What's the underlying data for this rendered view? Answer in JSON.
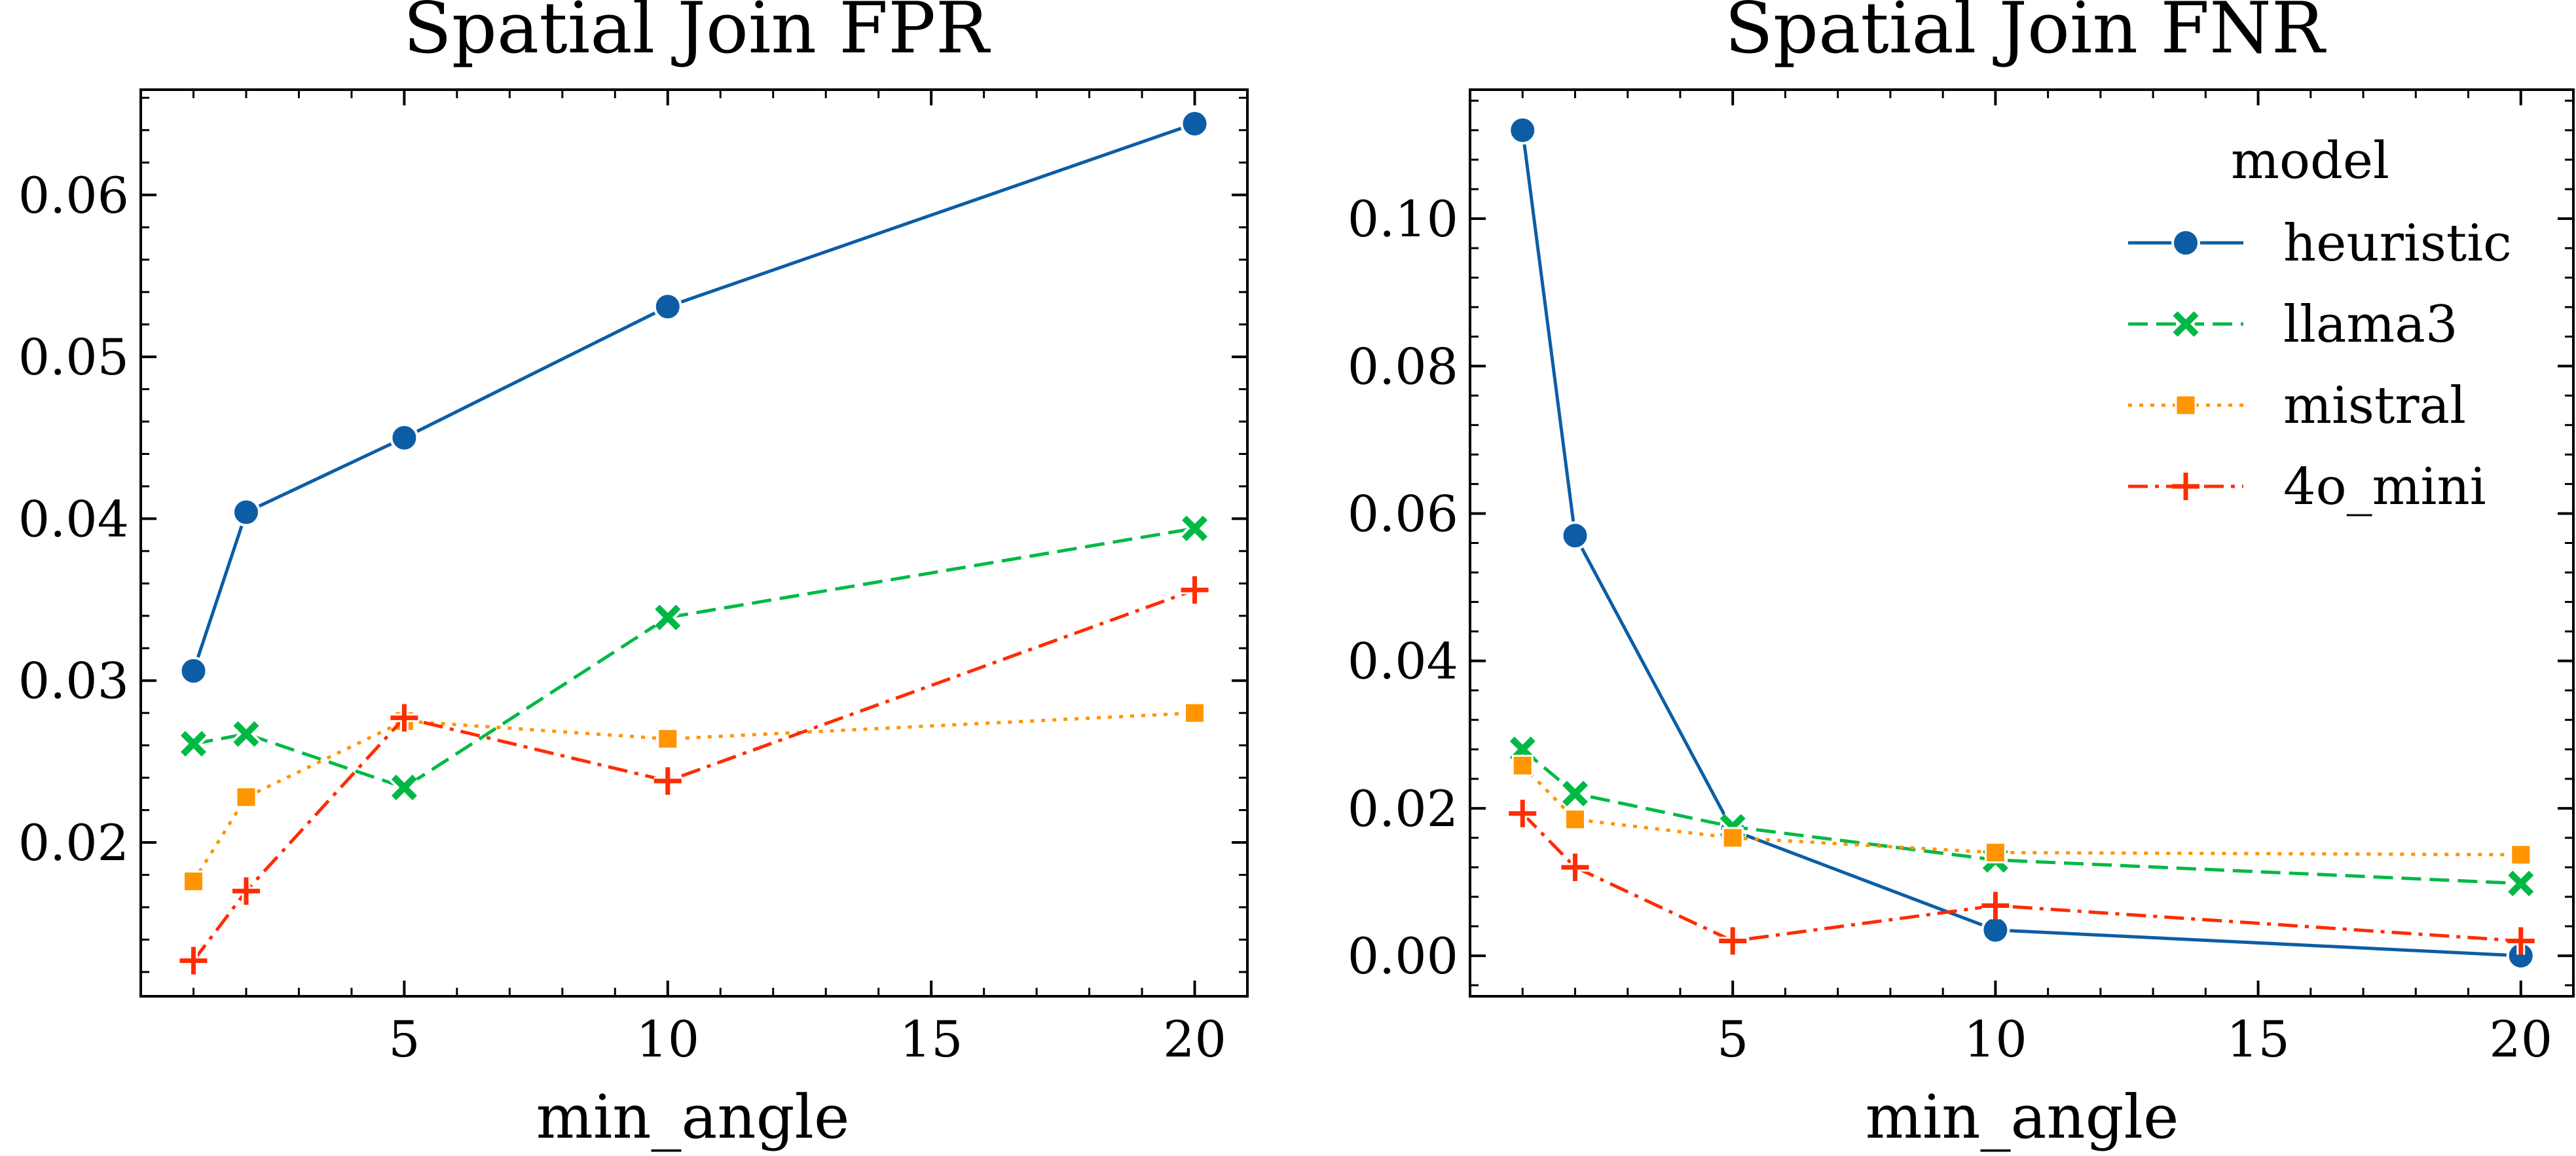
{
  "chart_data": [
    {
      "type": "line",
      "title": "Spatial Join FPR",
      "xlabel": "min_angle",
      "ylabel": "",
      "x": [
        1,
        2,
        5,
        10,
        20
      ],
      "xlim": [
        0,
        21
      ],
      "ylim": [
        0.0105,
        0.0665
      ],
      "xticks": [
        5,
        10,
        15,
        20
      ],
      "xtick_labels": [
        "5",
        "10",
        "15",
        "20"
      ],
      "yticks": [
        0.02,
        0.03,
        0.04,
        0.05,
        0.06
      ],
      "ytick_labels": [
        "0.02",
        "0.03",
        "0.04",
        "0.05",
        "0.06"
      ],
      "grid": false,
      "legend": false,
      "series": [
        {
          "name": "heuristic",
          "values": [
            0.0306,
            0.0404,
            0.045,
            0.0531,
            0.0644
          ]
        },
        {
          "name": "llama3",
          "values": [
            0.0261,
            0.0267,
            0.0234,
            0.0339,
            0.0394
          ]
        },
        {
          "name": "mistral",
          "values": [
            0.0176,
            0.0228,
            0.0275,
            0.0264,
            0.028
          ]
        },
        {
          "name": "4o_mini",
          "values": [
            0.0127,
            0.017,
            0.0277,
            0.0238,
            0.0356
          ]
        }
      ]
    },
    {
      "type": "line",
      "title": "Spatial Join FNR",
      "xlabel": "min_angle",
      "ylabel": "",
      "x": [
        1,
        2,
        5,
        10,
        20
      ],
      "xlim": [
        0,
        21
      ],
      "ylim": [
        -0.0055,
        0.1175
      ],
      "xticks": [
        5,
        10,
        15,
        20
      ],
      "xtick_labels": [
        "5",
        "10",
        "15",
        "20"
      ],
      "yticks": [
        0.0,
        0.02,
        0.04,
        0.06,
        0.08,
        0.1
      ],
      "ytick_labels": [
        "0.00",
        "0.02",
        "0.04",
        "0.06",
        "0.08",
        "0.10"
      ],
      "grid": false,
      "legend": true,
      "legend_position": "top-right",
      "legend_title": "model",
      "series": [
        {
          "name": "heuristic",
          "values": [
            0.112,
            0.057,
            0.017,
            0.0035,
            0.0
          ]
        },
        {
          "name": "llama3",
          "values": [
            0.028,
            0.022,
            0.0175,
            0.013,
            0.0098
          ]
        },
        {
          "name": "mistral",
          "values": [
            0.0258,
            0.0185,
            0.016,
            0.014,
            0.0137
          ]
        },
        {
          "name": "4o_mini",
          "values": [
            0.0193,
            0.012,
            0.002,
            0.0068,
            0.002
          ]
        }
      ]
    }
  ],
  "series_styles": [
    {
      "name": "heuristic",
      "color": "#0C5DA5",
      "line": "solid",
      "marker": "circle"
    },
    {
      "name": "llama3",
      "color": "#00B945",
      "line": "dashed",
      "marker": "x"
    },
    {
      "name": "mistral",
      "color": "#FF9500",
      "line": "dotted",
      "marker": "square"
    },
    {
      "name": "4o_mini",
      "color": "#FF2C00",
      "line": "dashdot",
      "marker": "plus"
    }
  ]
}
